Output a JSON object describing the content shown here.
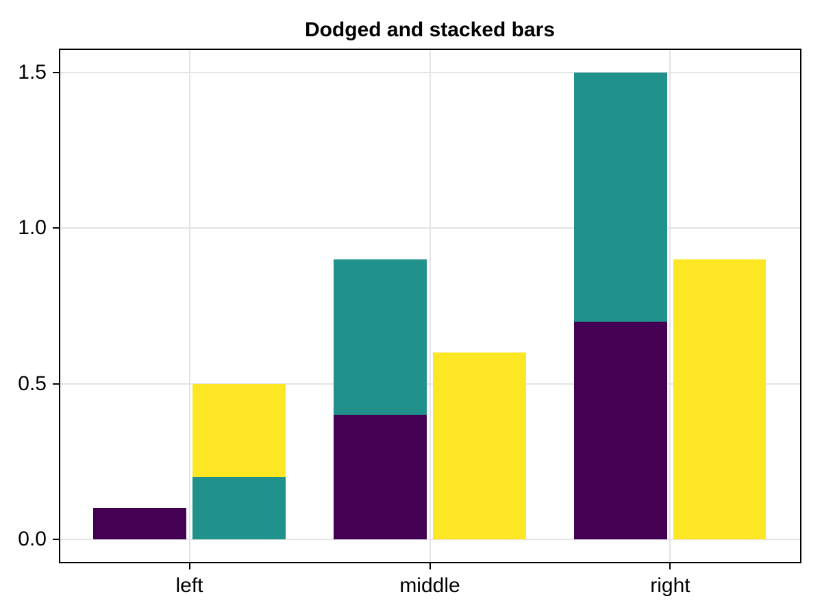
{
  "chart_data": {
    "type": "bar",
    "variant": "dodged and stacked",
    "title": "Dodged and stacked bars",
    "categories": [
      "left",
      "middle",
      "right"
    ],
    "x_axis": {
      "tick_labels": [
        "left",
        "middle",
        "right"
      ],
      "tick_positions": [
        1,
        2,
        3
      ],
      "limits": [
        0.46,
        3.54
      ],
      "grid": true
    },
    "y_axis": {
      "tick_labels": [
        "0.0",
        "0.5",
        "1.0",
        "1.5"
      ],
      "tick_values": [
        0.0,
        0.5,
        1.0,
        1.5
      ],
      "limits": [
        -0.075,
        1.575
      ],
      "grid": true
    },
    "palette": {
      "purple": "#440154",
      "teal": "#21918C",
      "yellow": "#FDE725"
    },
    "bar_width": 0.387,
    "dodge_offset": 0.2055,
    "segments": [
      {
        "category": "left",
        "x": 1,
        "dodge": -1,
        "color": "purple",
        "from": 0.0,
        "to": 0.1,
        "value": 0.1
      },
      {
        "category": "left",
        "x": 1,
        "dodge": 1,
        "color": "teal",
        "from": 0.0,
        "to": 0.2,
        "value": 0.2
      },
      {
        "category": "left",
        "x": 1,
        "dodge": 1,
        "color": "yellow",
        "from": 0.2,
        "to": 0.5,
        "value": 0.3
      },
      {
        "category": "middle",
        "x": 2,
        "dodge": -1,
        "color": "purple",
        "from": 0.0,
        "to": 0.4,
        "value": 0.4
      },
      {
        "category": "middle",
        "x": 2,
        "dodge": -1,
        "color": "teal",
        "from": 0.4,
        "to": 0.9,
        "value": 0.5
      },
      {
        "category": "middle",
        "x": 2,
        "dodge": 1,
        "color": "yellow",
        "from": 0.0,
        "to": 0.6,
        "value": 0.6
      },
      {
        "category": "right",
        "x": 3,
        "dodge": -1,
        "color": "purple",
        "from": 0.0,
        "to": 0.7,
        "value": 0.7
      },
      {
        "category": "right",
        "x": 3,
        "dodge": -1,
        "color": "teal",
        "from": 0.7,
        "to": 1.5,
        "value": 0.8
      },
      {
        "category": "right",
        "x": 3,
        "dodge": 1,
        "color": "yellow",
        "from": 0.0,
        "to": 0.9,
        "value": 0.9
      }
    ],
    "colors": {
      "grid": "#E4E4E4",
      "axis": "#000000",
      "text": "#000000",
      "background": "#FFFFFF"
    }
  }
}
